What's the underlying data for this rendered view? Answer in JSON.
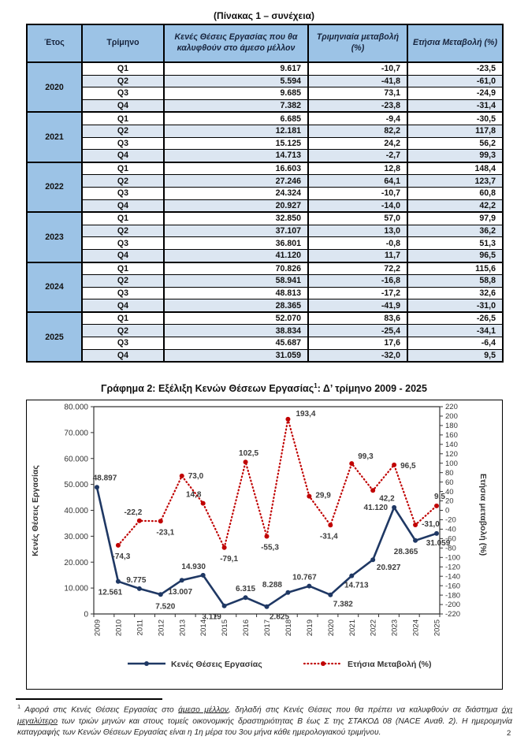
{
  "table": {
    "title": "(Πίνακας 1 – συνέχεια)",
    "headers": [
      "Έτος",
      "Τρίμηνο",
      "Κενές Θέσεις Εργασίας που θα καλυφθούν στο άμεσο μέλλον",
      "Τριμηνιαία μεταβολή (%)",
      "Ετήσια Μεταβολή (%)"
    ],
    "groups": [
      {
        "year": "2020",
        "rows": [
          [
            "Q1",
            "9.617",
            "-10,7",
            "-23,5"
          ],
          [
            "Q2",
            "5.594",
            "-41,8",
            "-61,0"
          ],
          [
            "Q3",
            "9.685",
            "73,1",
            "-24,9"
          ],
          [
            "Q4",
            "7.382",
            "-23,8",
            "-31,4"
          ]
        ]
      },
      {
        "year": "2021",
        "rows": [
          [
            "Q1",
            "6.685",
            "-9,4",
            "-30,5"
          ],
          [
            "Q2",
            "12.181",
            "82,2",
            "117,8"
          ],
          [
            "Q3",
            "15.125",
            "24,2",
            "56,2"
          ],
          [
            "Q4",
            "14.713",
            "-2,7",
            "99,3"
          ]
        ]
      },
      {
        "year": "2022",
        "rows": [
          [
            "Q1",
            "16.603",
            "12,8",
            "148,4"
          ],
          [
            "Q2",
            "27.246",
            "64,1",
            "123,7"
          ],
          [
            "Q3",
            "24.324",
            "-10,7",
            "60,8"
          ],
          [
            "Q4",
            "20.927",
            "-14,0",
            "42,2"
          ]
        ]
      },
      {
        "year": "2023",
        "rows": [
          [
            "Q1",
            "32.850",
            "57,0",
            "97,9"
          ],
          [
            "Q2",
            "37.107",
            "13,0",
            "36,2"
          ],
          [
            "Q3",
            "36.801",
            "-0,8",
            "51,3"
          ],
          [
            "Q4",
            "41.120",
            "11,7",
            "96,5"
          ]
        ]
      },
      {
        "year": "2024",
        "rows": [
          [
            "Q1",
            "70.826",
            "72,2",
            "115,6"
          ],
          [
            "Q2",
            "58.941",
            "-16,8",
            "58,8"
          ],
          [
            "Q3",
            "48.813",
            "-17,2",
            "32,6"
          ],
          [
            "Q4",
            "28.365",
            "-41,9",
            "-31,0"
          ]
        ]
      },
      {
        "year": "2025",
        "rows": [
          [
            "Q1",
            "52.070",
            "83,6",
            "-26,5"
          ],
          [
            "Q2",
            "38.834",
            "-25,4",
            "-34,1"
          ],
          [
            "Q3",
            "45.687",
            "17,6",
            "-6,4"
          ],
          [
            "Q4",
            "31.059",
            "-32,0",
            "9,5"
          ]
        ]
      }
    ]
  },
  "chart": {
    "heading": {
      "pre": "Γράφημα 2: Εξέλιξη Κενών Θέσεων Εργασίας",
      "sup": "1",
      "post": ": Δ’ τρίμηνο 2009 - 2025"
    }
  },
  "chart_data": {
    "type": "line",
    "title": "Γράφημα 2: Εξέλιξη Κενών Θέσεων Εργασίας(1): Δ’ τρίμηνο 2009 - 2025",
    "categories": [
      "2009",
      "2010",
      "2011",
      "2012",
      "2013",
      "2014",
      "2015",
      "2016",
      "2017",
      "2018",
      "2019",
      "2020",
      "2021",
      "2022",
      "2023",
      "2024",
      "2025"
    ],
    "ylabel_left": "Κενές Θέσεις Εργασίας",
    "ylabel_right": "Ετήσια μεταβολή (%)",
    "ylim_left": [
      0,
      80000
    ],
    "ytick_step_left": 10000,
    "ylim_right": [
      -220,
      220
    ],
    "ytick_step_right": 20,
    "grid": false,
    "legend_position": "bottom",
    "colors": {
      "vacancies": "#1F3864",
      "annual_change": "#C00000",
      "labels": "#3d3d3d"
    },
    "series": [
      {
        "name": "Κενές Θέσεις Εργασίας",
        "axis": "left",
        "color": "#1F3864",
        "line": "solid",
        "values": [
          48897,
          12561,
          9775,
          7520,
          13007,
          14930,
          3119,
          6315,
          2825,
          8288,
          10767,
          7382,
          14713,
          20927,
          41120,
          28365,
          31059
        ],
        "labels": [
          "48.897",
          "12.561",
          "9.775",
          "7.520",
          "13.007",
          "14.930",
          "3.119",
          "6.315",
          "2.825",
          "8.288",
          "10.767",
          "7.382",
          "14.713",
          "20.927",
          "41.120",
          "28.365",
          "31.059"
        ],
        "label_offsets": [
          [
            10,
            -9
          ],
          [
            -10,
            17
          ],
          [
            -4,
            -8
          ],
          [
            6,
            18
          ],
          [
            -2,
            18
          ],
          [
            -12,
            -8
          ],
          [
            -16,
            17
          ],
          [
            0,
            -8
          ],
          [
            16,
            16
          ],
          [
            -20,
            -7
          ],
          [
            -6,
            -8
          ],
          [
            16,
            15
          ],
          [
            6,
            15
          ],
          [
            20,
            13
          ],
          [
            -8,
            3
          ],
          [
            -12,
            17
          ],
          [
            2,
            15
          ]
        ],
        "label_anchors": [
          "middle",
          "middle",
          "middle",
          "middle",
          "middle",
          "middle",
          "middle",
          "middle",
          "middle",
          "middle",
          "middle",
          "middle",
          "middle",
          "middle",
          "end",
          "middle",
          "middle"
        ]
      },
      {
        "name": "Ετήσια Μεταβολή (%)",
        "axis": "right",
        "color": "#C00000",
        "line": "dotted",
        "values": [
          null,
          -74.3,
          -22.2,
          -23.1,
          73.0,
          14.8,
          -79.1,
          102.5,
          -55.3,
          193.4,
          29.9,
          -31.4,
          99.3,
          42.2,
          96.5,
          -31.0,
          9.5
        ],
        "labels": [
          "",
          "-74,3",
          "-22,2",
          "-23,1",
          "73,0",
          "14,8",
          "-79,1",
          "102,5",
          "-55,3",
          "193,4",
          "29,9",
          "-31,4",
          "99,3",
          "42,2",
          "96,5",
          "-31,0",
          "9,5"
        ],
        "label_offsets": [
          [
            0,
            0
          ],
          [
            4,
            17
          ],
          [
            -8,
            -8
          ],
          [
            6,
            17
          ],
          [
            8,
            3
          ],
          [
            -12,
            -8
          ],
          [
            6,
            17
          ],
          [
            4,
            -8
          ],
          [
            4,
            17
          ],
          [
            10,
            -4
          ],
          [
            8,
            2
          ],
          [
            -2,
            17
          ],
          [
            8,
            -6
          ],
          [
            8,
            13
          ],
          [
            8,
            4
          ],
          [
            8,
            2
          ],
          [
            4,
            -9
          ]
        ],
        "label_anchors": [
          "middle",
          "middle",
          "middle",
          "middle",
          "start",
          "middle",
          "middle",
          "middle",
          "middle",
          "start",
          "start",
          "middle",
          "start",
          "start",
          "start",
          "start",
          "middle"
        ]
      }
    ]
  },
  "footnote": {
    "marker": "1",
    "segments": [
      {
        "text": "Αφορά στις Κενές Θέσεις Εργασίας στο ",
        "u": false
      },
      {
        "text": "άμεσο μέλλον",
        "u": true
      },
      {
        "text": ", δηλαδή στις Κενές Θέσεις που θα πρέπει να καλυφθούν σε διάστημα ",
        "u": false
      },
      {
        "text": "όχι μεγαλύτερο",
        "u": true
      },
      {
        "text": " των τριών μηνών και στους τομείς οικονομικής δραστηριότητας Β έως Σ της ΣΤΑΚΟΔ 08 (NACE Αναθ. 2). Η ημερομηνία καταγραφής των Κενών Θέσεων Εργασίας είναι η 1η μέρα του 3ου μήνα κάθε ημερολογιακού τριμήνου.",
        "u": false
      }
    ]
  },
  "page": {
    "corner_mark": "2"
  }
}
